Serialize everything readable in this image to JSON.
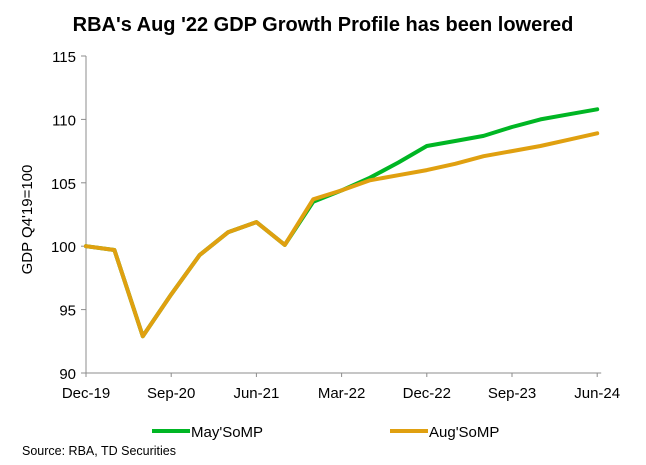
{
  "chart_data": {
    "type": "line",
    "title": "RBA's Aug '22 GDP Growth Profile has been lowered",
    "xlabel": "",
    "ylabel": "GDP Q4'19=100",
    "ylim": [
      90,
      115
    ],
    "yticks": [
      90,
      95,
      100,
      105,
      110,
      115
    ],
    "x": [
      "Dec-19",
      "Mar-20",
      "Jun-20",
      "Sep-20",
      "Dec-20",
      "Mar-21",
      "Jun-21",
      "Sep-21",
      "Dec-21",
      "Mar-22",
      "Jun-22",
      "Sep-22",
      "Dec-22",
      "Mar-23",
      "Jun-23",
      "Sep-23",
      "Dec-23",
      "Mar-24",
      "Jun-24"
    ],
    "xtick_labels": [
      "Dec-19",
      "Sep-20",
      "Jun-21",
      "Mar-22",
      "Dec-22",
      "Sep-23",
      "Jun-24"
    ],
    "grid": false,
    "legend_position": "bottom",
    "series": [
      {
        "name": "May'SoMP",
        "color": "#00b624",
        "values": [
          100.0,
          99.7,
          92.9,
          96.2,
          99.3,
          101.1,
          101.9,
          100.1,
          103.5,
          104.4,
          105.4,
          106.6,
          107.9,
          108.3,
          108.7,
          109.4,
          110.0,
          110.4,
          110.8
        ]
      },
      {
        "name": "Aug'SoMP",
        "color": "#e0a010",
        "values": [
          100.0,
          99.7,
          92.9,
          96.2,
          99.3,
          101.1,
          101.9,
          100.1,
          103.7,
          104.4,
          105.2,
          105.6,
          106.0,
          106.5,
          107.1,
          107.5,
          107.9,
          108.4,
          108.9
        ]
      }
    ]
  },
  "source": "Source: RBA, TD Securities"
}
